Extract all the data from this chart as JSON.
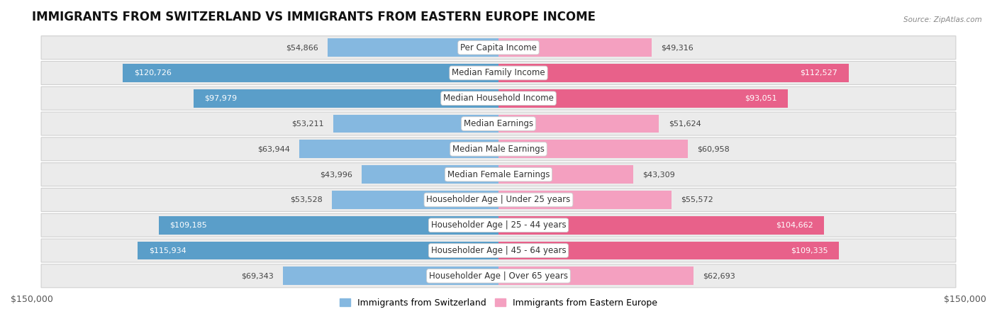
{
  "title": "IMMIGRANTS FROM SWITZERLAND VS IMMIGRANTS FROM EASTERN EUROPE INCOME",
  "source": "Source: ZipAtlas.com",
  "categories": [
    "Per Capita Income",
    "Median Family Income",
    "Median Household Income",
    "Median Earnings",
    "Median Male Earnings",
    "Median Female Earnings",
    "Householder Age | Under 25 years",
    "Householder Age | 25 - 44 years",
    "Householder Age | 45 - 64 years",
    "Householder Age | Over 65 years"
  ],
  "switzerland_values": [
    54866,
    120726,
    97979,
    53211,
    63944,
    43996,
    53528,
    109185,
    115934,
    69343
  ],
  "eastern_europe_values": [
    49316,
    112527,
    93051,
    51624,
    60958,
    43309,
    55572,
    104662,
    109335,
    62693
  ],
  "switzerland_color": "#85b8e0",
  "switzerland_color_dark": "#5a9ec9",
  "eastern_europe_color": "#f4a0c0",
  "eastern_europe_color_dark": "#e8618a",
  "switzerland_label": "Immigrants from Switzerland",
  "eastern_europe_label": "Immigrants from Eastern Europe",
  "max_value": 150000,
  "background_color": "#ffffff",
  "row_bg": "#ebebeb",
  "title_fontsize": 12,
  "label_fontsize": 8.5,
  "value_fontsize": 8,
  "axis_label_fontsize": 9,
  "white_text_threshold": 75000
}
